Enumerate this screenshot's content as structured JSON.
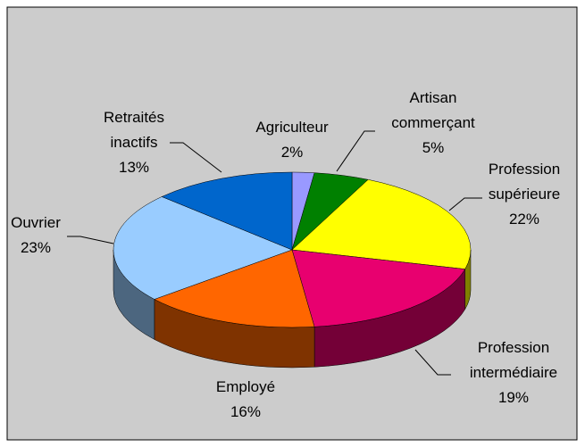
{
  "chart_data": {
    "type": "pie",
    "categories": [
      "Agriculteur",
      "Artisan commerçant",
      "Profession supérieure",
      "Profession intermédiaire",
      "Employé",
      "Ouvrier",
      "Retraités inactifs"
    ],
    "values": [
      2,
      5,
      22,
      19,
      16,
      23,
      13
    ],
    "value_labels": [
      "2%",
      "5%",
      "22%",
      "19%",
      "16%",
      "23%",
      "13%"
    ],
    "colors": [
      "#9999ff",
      "#008000",
      "#ffff00",
      "#e8006f",
      "#ff6600",
      "#99ccff",
      "#0066cc"
    ]
  }
}
